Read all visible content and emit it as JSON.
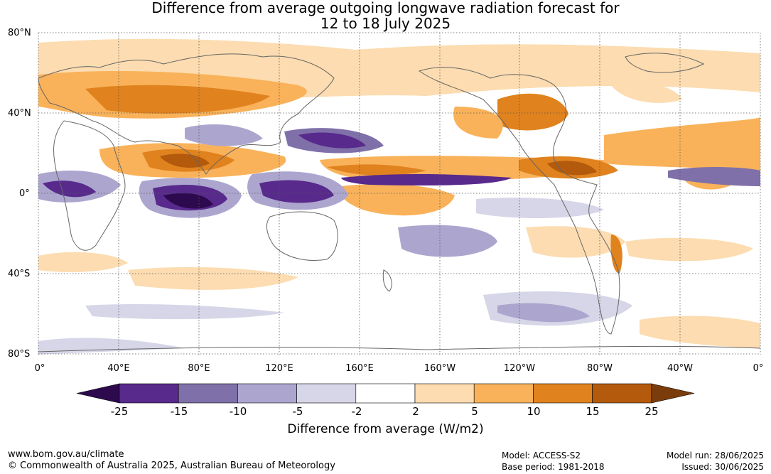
{
  "title_line1": "Difference from average outgoing longwave radiation forecast for",
  "title_line2": "12 to 18 July 2025",
  "lat_labels": [
    "80°N",
    "40°N",
    "0°",
    "40°S",
    "80°S"
  ],
  "lon_labels": [
    "0°",
    "40°E",
    "80°E",
    "120°E",
    "160°E",
    "160°W",
    "120°W",
    "80°W",
    "40°W",
    "0°"
  ],
  "colorbar": {
    "ticks": [
      "-25",
      "-15",
      "-10",
      "-5",
      "-2",
      "2",
      "5",
      "10",
      "15",
      "25"
    ],
    "colors": [
      "#2d0a4e",
      "#582a8c",
      "#8070a9",
      "#aca6cf",
      "#d6d6e8",
      "#ffffff",
      "#fcdcb0",
      "#f9b25a",
      "#e0821e",
      "#b35a0c",
      "#7a3c0a"
    ],
    "label": "Difference from average (W/m2)"
  },
  "footer": {
    "site": "www.bom.gov.au/climate",
    "copyright": "© Commonwealth of Australia 2025, Australian Bureau of Meteorology",
    "model": "Model: ACCESS-S2",
    "base_period": "Base period: 1981-2018",
    "model_run": "Model run: 28/06/2025",
    "issued": "Issued: 30/06/2025"
  }
}
